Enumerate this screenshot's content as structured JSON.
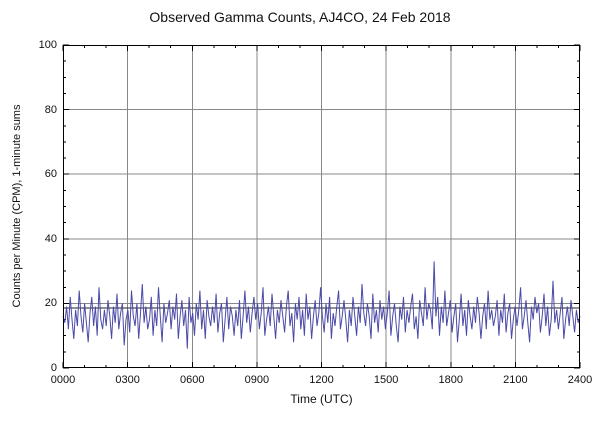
{
  "chart_data": {
    "type": "line",
    "title": "Observed Gamma Counts, AJ4CO, 24 Feb 2018",
    "xlabel": "Time (UTC)",
    "ylabel": "Counts per Minute (CPM), 1-minute sums",
    "x_tick_labels": [
      "0000",
      "0300",
      "0600",
      "0900",
      "1200",
      "1500",
      "1800",
      "2100",
      "2400"
    ],
    "x_tick_hours": [
      0,
      3,
      6,
      9,
      12,
      15,
      18,
      21,
      24
    ],
    "x_range_hours": [
      0,
      24
    ],
    "ylim": [
      0,
      100
    ],
    "y_ticks": [
      0,
      20,
      40,
      60,
      80,
      100
    ],
    "grid": true,
    "legend": "none",
    "mean_line": 18.5,
    "line_color": "#4a4aa8",
    "grid_color": "#888888",
    "series": [
      {
        "name": "Gamma counts (CPM), 1-minute sums",
        "sample_interval_minutes": 5,
        "values": [
          16,
          14,
          19,
          12,
          22,
          15,
          9,
          18,
          13,
          24,
          16,
          11,
          20,
          14,
          8,
          17,
          22,
          13,
          19,
          10,
          25,
          15,
          12,
          18,
          13,
          21,
          16,
          9,
          19,
          14,
          23,
          12,
          17,
          20,
          7,
          15,
          18,
          11,
          24,
          16,
          13,
          20,
          9,
          17,
          26,
          14,
          19,
          12,
          15,
          22,
          10,
          18,
          13,
          25,
          16,
          8,
          20,
          14,
          17,
          21,
          12,
          19,
          15,
          23,
          9,
          16,
          21,
          13,
          18,
          6,
          22,
          14,
          17,
          10,
          20,
          15,
          24,
          12,
          18,
          9,
          21,
          16,
          13,
          19,
          14,
          23,
          11,
          17,
          20,
          8,
          15,
          22,
          12,
          19,
          16,
          10,
          18,
          13,
          21,
          9,
          16,
          24,
          14,
          19,
          11,
          17,
          22,
          15,
          20,
          12,
          17,
          25,
          10,
          15,
          19,
          13,
          23,
          16,
          9,
          18,
          14,
          21,
          16,
          11,
          19,
          24,
          13,
          17,
          8,
          20,
          15,
          22,
          12,
          18,
          10,
          23,
          15,
          19,
          9,
          16,
          21,
          13,
          17,
          25,
          16,
          11,
          20,
          14,
          22,
          9,
          17,
          13,
          19,
          24,
          12,
          16,
          21,
          15,
          8,
          18,
          13,
          22,
          16,
          10,
          19,
          14,
          26,
          17,
          13,
          20,
          16,
          9,
          23,
          14,
          18,
          11,
          21,
          15,
          19,
          12,
          17,
          24,
          10,
          16,
          20,
          13,
          8,
          19,
          15,
          22,
          11,
          18,
          14,
          19,
          23,
          12,
          16,
          9,
          21,
          17,
          13,
          25,
          15,
          20,
          18,
          12,
          33,
          16,
          22,
          10,
          19,
          14,
          24,
          13,
          17,
          21,
          11,
          16,
          20,
          8,
          15,
          23,
          13,
          18,
          10,
          21,
          16,
          12,
          19,
          14,
          22,
          17,
          9,
          16,
          20,
          12,
          24,
          15,
          18,
          13,
          16,
          21,
          10,
          18,
          14,
          23,
          11,
          17,
          20,
          9,
          15,
          19,
          13,
          18,
          25,
          12,
          16,
          21,
          14,
          8,
          19,
          15,
          22,
          17,
          20,
          11,
          16,
          23,
          13,
          19,
          10,
          15,
          27,
          14,
          18,
          12,
          17,
          22,
          9,
          15,
          19,
          13,
          21,
          16,
          11,
          18,
          14,
          16
        ]
      }
    ]
  }
}
